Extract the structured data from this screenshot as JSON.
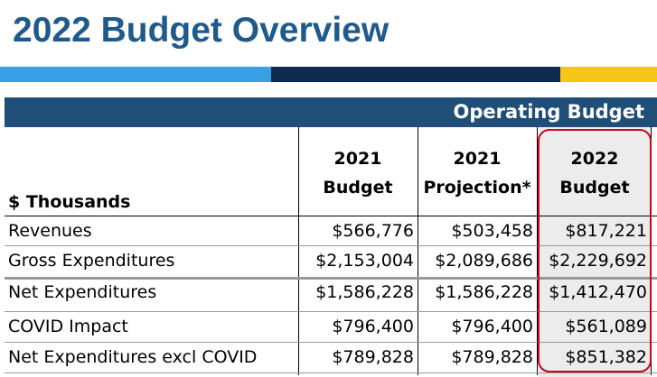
{
  "header": {
    "title": "2022 Budget Overview"
  },
  "table": {
    "band": "Operating Budget",
    "columns": [
      [
        "$ Thousands"
      ],
      [
        "2021",
        "Budget"
      ],
      [
        "2021",
        "Projection*"
      ],
      [
        "2022",
        "Budget"
      ]
    ],
    "rows": [
      [
        "Revenues",
        "$566,776",
        "$503,458",
        "$817,221"
      ],
      [
        "Gross Expenditures",
        "$2,153,004",
        "$2,089,686",
        "$2,229,692"
      ],
      [
        "Net Expenditures",
        "$1,586,228",
        "$1,586,228",
        "$1,412,470"
      ],
      [
        "COVID Impact",
        "$796,400",
        "$796,400",
        "$561,089"
      ],
      [
        "Net Expenditures excl COVID",
        "$789,828",
        "$789,828",
        "$851,382"
      ]
    ]
  }
}
